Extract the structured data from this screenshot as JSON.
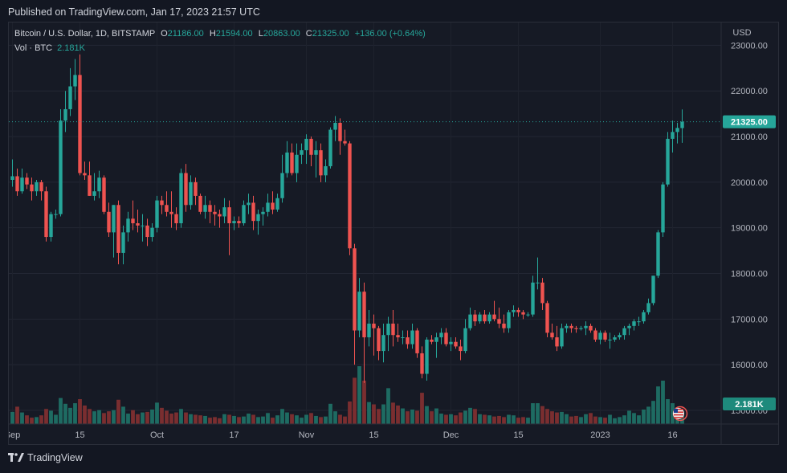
{
  "published": "Published on TradingView.com, Jan 17, 2023 21:57 UTC",
  "header": {
    "symbol": "Bitcoin / U.S. Dollar, 1D, BITSTAMP",
    "o_label": "O",
    "o": "21186.00",
    "h_label": "H",
    "h": "21594.00",
    "l_label": "L",
    "l": "20863.00",
    "c_label": "C",
    "c": "21325.00",
    "change": "+136.00 (+0.64%)"
  },
  "vol": {
    "label": "Vol · BTC",
    "value": "2.181K"
  },
  "footer": {
    "brand": "TradingView",
    "logo_icon": "tradingview-logo-icon"
  },
  "colors": {
    "up": "#26a69a",
    "down": "#ef5350",
    "up_vol": "#1e6b62",
    "down_vol": "#7a2e30",
    "bg": "#161a25"
  },
  "chart_data": {
    "type": "candlestick",
    "currency_label": "USD",
    "price_axis": {
      "ylim": [
        14700,
        23500
      ],
      "ticks": [
        "23000.00",
        "22000.00",
        "21000.00",
        "20000.00",
        "19000.00",
        "18000.00",
        "17000.00",
        "16000.00",
        "15000.00"
      ]
    },
    "last_price": {
      "value": 21325,
      "label": "21325.00"
    },
    "last_volume_label": "2.181K",
    "time_axis": {
      "labels": [
        {
          "label": "Sep",
          "day": 0
        },
        {
          "label": "15",
          "day": 14
        },
        {
          "label": "Oct",
          "day": 30
        },
        {
          "label": "17",
          "day": 46
        },
        {
          "label": "Nov",
          "day": 61
        },
        {
          "label": "15",
          "day": 75
        },
        {
          "label": "Dec",
          "day": 91
        },
        {
          "label": "15",
          "day": 105
        },
        {
          "label": "2023",
          "day": 122
        },
        {
          "label": "16",
          "day": 137
        }
      ]
    },
    "candles": [
      [
        20050,
        20500,
        19900,
        20130,
        2.1
      ],
      [
        20130,
        20300,
        19700,
        19800,
        3.0
      ],
      [
        19800,
        20300,
        19750,
        20100,
        2.0
      ],
      [
        20100,
        20200,
        19850,
        19950,
        1.5
      ],
      [
        19950,
        20100,
        19600,
        19800,
        1.1
      ],
      [
        19800,
        20050,
        19700,
        20000,
        1.2
      ],
      [
        20000,
        20050,
        19600,
        19800,
        1.5
      ],
      [
        19800,
        19900,
        18700,
        18800,
        2.6
      ],
      [
        18800,
        19350,
        18700,
        19300,
        2.3
      ],
      [
        19300,
        19400,
        19200,
        19300,
        1.6
      ],
      [
        19300,
        21600,
        19250,
        21350,
        4.5
      ],
      [
        21350,
        22000,
        21100,
        21600,
        3.5
      ],
      [
        21600,
        22500,
        21450,
        22100,
        2.8
      ],
      [
        22100,
        22700,
        21800,
        22350,
        3.6
      ],
      [
        22350,
        22800,
        20150,
        20200,
        4.3
      ],
      [
        20200,
        20450,
        20050,
        20150,
        3.2
      ],
      [
        20150,
        20450,
        19700,
        19700,
        2.6
      ],
      [
        19700,
        20200,
        19600,
        19800,
        2.2
      ],
      [
        19800,
        20250,
        19650,
        20100,
        2.4
      ],
      [
        20100,
        20150,
        19300,
        19350,
        1.9
      ],
      [
        19350,
        19550,
        18800,
        18900,
        2.2
      ],
      [
        18900,
        19500,
        18350,
        19500,
        2.4
      ],
      [
        19500,
        19600,
        18200,
        18450,
        4.2
      ],
      [
        18450,
        19050,
        18200,
        18900,
        3.0
      ],
      [
        18900,
        19350,
        18700,
        19200,
        1.8
      ],
      [
        19200,
        19600,
        18950,
        19100,
        2.4
      ],
      [
        19100,
        19400,
        18900,
        19050,
        1.7
      ],
      [
        19050,
        19300,
        18700,
        19050,
        2.0
      ],
      [
        19050,
        19200,
        18600,
        18800,
        2.1
      ],
      [
        18800,
        19100,
        18700,
        19000,
        2.5
      ],
      [
        19000,
        19700,
        18900,
        19600,
        3.7
      ],
      [
        19600,
        19700,
        19300,
        19500,
        2.8
      ],
      [
        19500,
        19800,
        19250,
        19350,
        2.3
      ],
      [
        19350,
        19800,
        19000,
        19300,
        1.8
      ],
      [
        19300,
        19450,
        18950,
        19100,
        2.0
      ],
      [
        19100,
        20300,
        19000,
        20200,
        2.6
      ],
      [
        20200,
        20400,
        19350,
        19500,
        2.0
      ],
      [
        19500,
        20150,
        19400,
        20000,
        1.7
      ],
      [
        20000,
        20100,
        19500,
        19700,
        1.6
      ],
      [
        19700,
        19750,
        19300,
        19350,
        1.5
      ],
      [
        19350,
        19700,
        19200,
        19500,
        1.4
      ],
      [
        19500,
        19600,
        19100,
        19350,
        1.1
      ],
      [
        19350,
        19500,
        19050,
        19300,
        1.2
      ],
      [
        19300,
        19400,
        19000,
        19250,
        1.0
      ],
      [
        19250,
        19650,
        19100,
        19450,
        1.7
      ],
      [
        19450,
        19600,
        18400,
        19100,
        1.6
      ],
      [
        19100,
        19250,
        18950,
        19150,
        1.4
      ],
      [
        19150,
        19250,
        19000,
        19100,
        1.2
      ],
      [
        19100,
        19600,
        19050,
        19500,
        1.3
      ],
      [
        19500,
        19750,
        19300,
        19550,
        1.8
      ],
      [
        19550,
        19700,
        18950,
        19150,
        1.6
      ],
      [
        19150,
        19400,
        18850,
        19300,
        1.2
      ],
      [
        19300,
        19450,
        19050,
        19350,
        1.3
      ],
      [
        19350,
        19750,
        19250,
        19550,
        1.9
      ],
      [
        19550,
        19800,
        19300,
        19400,
        1.1
      ],
      [
        19400,
        19750,
        19350,
        19650,
        1.5
      ],
      [
        19650,
        20600,
        19550,
        20200,
        2.6
      ],
      [
        20200,
        20900,
        20100,
        20650,
        2.0
      ],
      [
        20650,
        20850,
        20150,
        20200,
        1.7
      ],
      [
        20200,
        20850,
        20000,
        20600,
        1.5
      ],
      [
        20600,
        20850,
        20400,
        20700,
        1.1
      ],
      [
        20700,
        21050,
        20400,
        20950,
        1.6
      ],
      [
        20950,
        21000,
        20350,
        20600,
        1.9
      ],
      [
        20600,
        20900,
        20100,
        20700,
        1.4
      ],
      [
        20700,
        20850,
        20000,
        20150,
        1.2
      ],
      [
        20150,
        20500,
        20000,
        20350,
        1.3
      ],
      [
        20350,
        21200,
        20300,
        21150,
        3.5
      ],
      [
        21150,
        21450,
        20900,
        21300,
        2.2
      ],
      [
        21300,
        21400,
        20600,
        20900,
        1.6
      ],
      [
        20900,
        21150,
        20800,
        20850,
        1.3
      ],
      [
        20850,
        20900,
        18400,
        18550,
        3.9
      ],
      [
        18550,
        18650,
        16000,
        16750,
        8.0
      ],
      [
        16750,
        17900,
        16600,
        17600,
        10.0
      ],
      [
        17600,
        17800,
        15600,
        16600,
        7.5
      ],
      [
        16600,
        17200,
        16400,
        16900,
        3.8
      ],
      [
        16900,
        17100,
        16200,
        16800,
        3.4
      ],
      [
        16800,
        16850,
        16100,
        16300,
        2.6
      ],
      [
        16300,
        16900,
        16050,
        16650,
        3.4
      ],
      [
        16650,
        17050,
        16300,
        16900,
        6.2
      ],
      [
        16900,
        17200,
        16400,
        16650,
        3.7
      ],
      [
        16650,
        16900,
        16500,
        16600,
        3.2
      ],
      [
        16600,
        16750,
        16450,
        16600,
        2.7
      ],
      [
        16600,
        16750,
        16350,
        16450,
        2.2
      ],
      [
        16450,
        16900,
        16350,
        16750,
        2.5
      ],
      [
        16750,
        16800,
        16150,
        16250,
        2.3
      ],
      [
        16250,
        16400,
        15700,
        15800,
        5.4
      ],
      [
        15800,
        16600,
        15650,
        16550,
        3.1
      ],
      [
        16550,
        16650,
        16450,
        16500,
        2.2
      ],
      [
        16500,
        16700,
        16150,
        16600,
        2.7
      ],
      [
        16600,
        16800,
        16450,
        16700,
        1.8
      ],
      [
        16700,
        16800,
        16400,
        16450,
        1.6
      ],
      [
        16450,
        16600,
        16300,
        16500,
        1.7
      ],
      [
        16500,
        16600,
        16350,
        16400,
        1.5
      ],
      [
        16400,
        16550,
        16100,
        16300,
        2.0
      ],
      [
        16300,
        17000,
        16250,
        16800,
        2.3
      ],
      [
        16800,
        17250,
        16750,
        17100,
        2.8
      ],
      [
        17100,
        17200,
        16850,
        16950,
        2.6
      ],
      [
        16950,
        17150,
        16900,
        17100,
        1.7
      ],
      [
        17100,
        17200,
        16900,
        16950,
        1.6
      ],
      [
        16950,
        17150,
        16900,
        17100,
        1.5
      ],
      [
        17100,
        17400,
        16950,
        17000,
        1.3
      ],
      [
        17000,
        17250,
        16800,
        16900,
        1.4
      ],
      [
        16900,
        17100,
        16700,
        16800,
        1.2
      ],
      [
        16800,
        17200,
        16700,
        17150,
        1.6
      ],
      [
        17150,
        17300,
        17050,
        17200,
        1.5
      ],
      [
        17200,
        17250,
        17050,
        17150,
        1.1
      ],
      [
        17150,
        17200,
        17000,
        17100,
        1.2
      ],
      [
        17100,
        17150,
        17050,
        17100,
        1.1
      ],
      [
        17100,
        17950,
        17050,
        17800,
        3.6
      ],
      [
        17800,
        18350,
        17650,
        17800,
        3.6
      ],
      [
        17800,
        17900,
        17200,
        17350,
        3.1
      ],
      [
        17350,
        17400,
        16600,
        16700,
        2.6
      ],
      [
        16700,
        16900,
        16550,
        16600,
        2.2
      ],
      [
        16600,
        16850,
        16300,
        16400,
        2.0
      ],
      [
        16400,
        16900,
        16350,
        16800,
        2.1
      ],
      [
        16800,
        16900,
        16700,
        16850,
        1.7
      ],
      [
        16850,
        16900,
        16700,
        16800,
        1.3
      ],
      [
        16800,
        16850,
        16700,
        16780,
        1.4
      ],
      [
        16780,
        16850,
        16750,
        16800,
        1.2
      ],
      [
        16800,
        16950,
        16650,
        16850,
        1.7
      ],
      [
        16850,
        16900,
        16700,
        16750,
        1.9
      ],
      [
        16750,
        16800,
        16500,
        16550,
        1.3
      ],
      [
        16550,
        16750,
        16450,
        16700,
        1.2
      ],
      [
        16700,
        16750,
        16500,
        16550,
        1.1
      ],
      [
        16550,
        16700,
        16350,
        16550,
        1.6
      ],
      [
        16550,
        16650,
        16500,
        16600,
        1.0
      ],
      [
        16600,
        16700,
        16550,
        16650,
        1.2
      ],
      [
        16650,
        16850,
        16550,
        16800,
        1.5
      ],
      [
        16800,
        16900,
        16650,
        16850,
        2.3
      ],
      [
        16850,
        17000,
        16750,
        16950,
        1.9
      ],
      [
        16950,
        17050,
        16850,
        16950,
        1.5
      ],
      [
        16950,
        17200,
        16900,
        17150,
        2.5
      ],
      [
        17150,
        17450,
        17100,
        17350,
        3.0
      ],
      [
        17350,
        17950,
        17300,
        17950,
        4.0
      ],
      [
        17950,
        18950,
        17900,
        18900,
        6.5
      ],
      [
        18900,
        20000,
        18800,
        19950,
        7.5
      ],
      [
        19950,
        21100,
        19900,
        20950,
        4.3
      ],
      [
        20950,
        21350,
        20650,
        21100,
        3.6
      ],
      [
        21100,
        21300,
        20850,
        21189,
        2.9
      ],
      [
        21186,
        21594,
        20863,
        21325,
        2.181
      ]
    ]
  }
}
